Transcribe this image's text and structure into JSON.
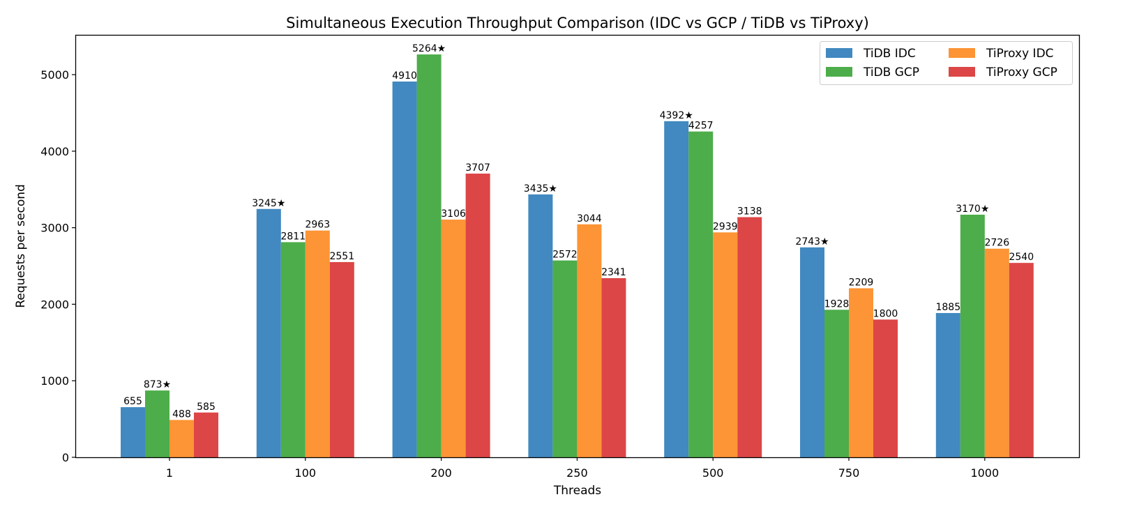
{
  "chart_data": {
    "type": "bar",
    "title": "Simultaneous Execution Throughput Comparison (IDC vs GCP / TiDB vs TiProxy)",
    "xlabel": "Threads",
    "ylabel": "Requests per second",
    "categories": [
      "1",
      "100",
      "200",
      "250",
      "500",
      "750",
      "1000"
    ],
    "ylim": [
      0,
      5520
    ],
    "yticks": [
      "0",
      "1000",
      "2000",
      "3000",
      "4000",
      "5000"
    ],
    "grid": false,
    "legend_position": "top-right",
    "series": [
      {
        "name": "TiDB IDC",
        "color": "#4189c0",
        "values": [
          655,
          3245,
          4910,
          3435,
          4392,
          2743,
          1885
        ],
        "labels": [
          "655",
          "3245★",
          "4910",
          "3435★",
          "4392★",
          "2743★",
          "1885"
        ]
      },
      {
        "name": "TiDB GCP",
        "color": "#4dad4a",
        "values": [
          873,
          2811,
          5264,
          2572,
          4257,
          1928,
          3170
        ],
        "labels": [
          "873★",
          "2811",
          "5264★",
          "2572",
          "4257",
          "1928",
          "3170★"
        ]
      },
      {
        "name": "TiProxy IDC",
        "color": "#fd9435",
        "values": [
          488,
          2963,
          3106,
          3044,
          2939,
          2209,
          2726
        ],
        "labels": [
          "488",
          "2963",
          "3106",
          "3044",
          "2939",
          "2209",
          "2726"
        ]
      },
      {
        "name": "TiProxy GCP",
        "color": "#dc4646",
        "values": [
          585,
          2551,
          3707,
          2341,
          3138,
          1800,
          2540
        ],
        "labels": [
          "585",
          "2551",
          "3707",
          "2341",
          "3138",
          "1800",
          "2540"
        ]
      }
    ]
  }
}
